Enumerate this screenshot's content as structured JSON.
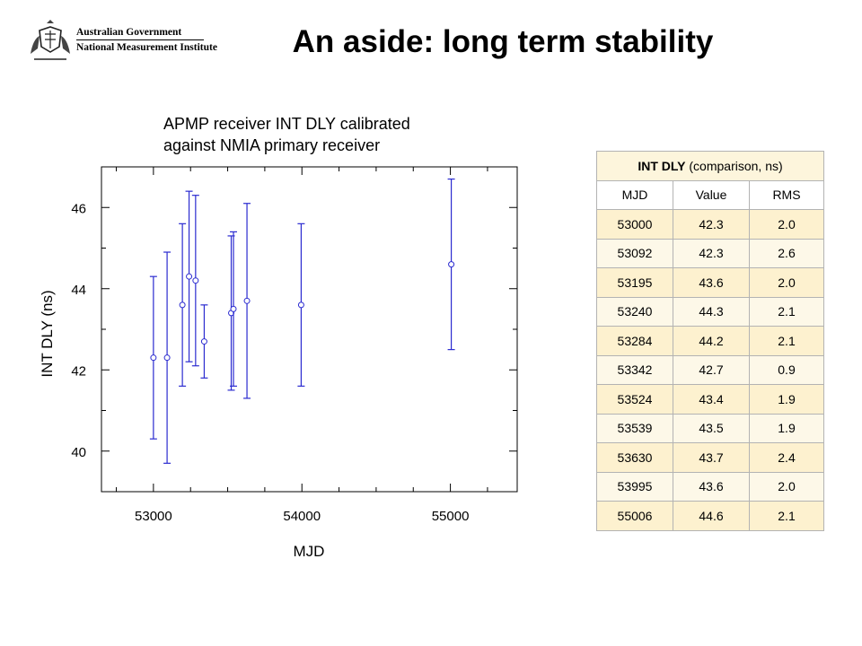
{
  "logo": {
    "line1": "Australian Government",
    "line2": "National Measurement Institute"
  },
  "slide": {
    "title": "An aside: long term stability",
    "subtitle_line1": "APMP receiver INT DLY calibrated",
    "subtitle_line2": "against NMIA primary receiver"
  },
  "chart_data": {
    "type": "scatter",
    "title": "",
    "xlabel": "MJD",
    "ylabel": "INT DLY (ns)",
    "xlim": [
      52650,
      55450
    ],
    "ylim": [
      39,
      47
    ],
    "xticks": [
      53000,
      54000,
      55000
    ],
    "yticks": [
      40,
      42,
      44,
      46
    ],
    "error_bars": true,
    "grid": false,
    "color": "#2b2bd0",
    "points": [
      {
        "x": 53000,
        "y": 42.3,
        "err": 2.0
      },
      {
        "x": 53092,
        "y": 42.3,
        "err": 2.6
      },
      {
        "x": 53195,
        "y": 43.6,
        "err": 2.0
      },
      {
        "x": 53240,
        "y": 44.3,
        "err": 2.1
      },
      {
        "x": 53284,
        "y": 44.2,
        "err": 2.1
      },
      {
        "x": 53342,
        "y": 42.7,
        "err": 0.9
      },
      {
        "x": 53524,
        "y": 43.4,
        "err": 1.9
      },
      {
        "x": 53539,
        "y": 43.5,
        "err": 1.9
      },
      {
        "x": 53630,
        "y": 43.7,
        "err": 2.4
      },
      {
        "x": 53995,
        "y": 43.6,
        "err": 2.0
      },
      {
        "x": 55006,
        "y": 44.6,
        "err": 2.1
      }
    ]
  },
  "table": {
    "caption_bold": "INT DLY",
    "caption_rest": " (comparison, ns)",
    "headers": [
      "MJD",
      "Value",
      "RMS"
    ],
    "rows": [
      [
        "53000",
        "42.3",
        "2.0"
      ],
      [
        "53092",
        "42.3",
        "2.6"
      ],
      [
        "53195",
        "43.6",
        "2.0"
      ],
      [
        "53240",
        "44.3",
        "2.1"
      ],
      [
        "53284",
        "44.2",
        "2.1"
      ],
      [
        "53342",
        "42.7",
        "0.9"
      ],
      [
        "53524",
        "43.4",
        "1.9"
      ],
      [
        "53539",
        "43.5",
        "1.9"
      ],
      [
        "53630",
        "43.7",
        "2.4"
      ],
      [
        "53995",
        "43.6",
        "2.0"
      ],
      [
        "55006",
        "44.6",
        "2.1"
      ]
    ]
  }
}
